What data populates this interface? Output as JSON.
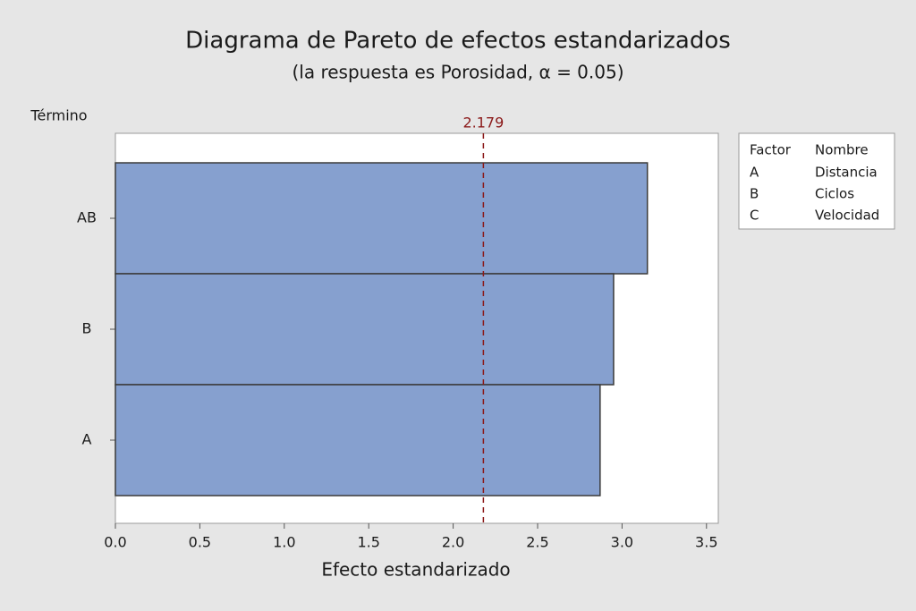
{
  "chart_data": {
    "type": "barh",
    "title": "Diagrama de Pareto de efectos estandarizados",
    "subtitle": "(la respuesta es Porosidad, α = 0.05)",
    "y_label": "Término",
    "x_label": "Efecto estandarizado",
    "categories": [
      "AB",
      "B",
      "A"
    ],
    "values": [
      3.15,
      2.95,
      2.87
    ],
    "color": "#86a0cf",
    "xlim": [
      0,
      3.57
    ],
    "xticks": [
      {
        "value": 0,
        "label": "0.0"
      },
      0.5,
      {
        "value": 1,
        "label": "1.0"
      },
      1.5,
      {
        "value": 2,
        "label": "2.0"
      },
      2.5,
      {
        "value": 3,
        "label": "3.0"
      },
      3.5
    ],
    "reference_line": 2.179,
    "factor_table": {
      "headers": [
        "Factor",
        "Nombre"
      ],
      "rows": [
        [
          "A",
          "Distancia"
        ],
        [
          "B",
          "Ciclos"
        ],
        [
          "C",
          "Velocidad"
        ]
      ]
    }
  }
}
